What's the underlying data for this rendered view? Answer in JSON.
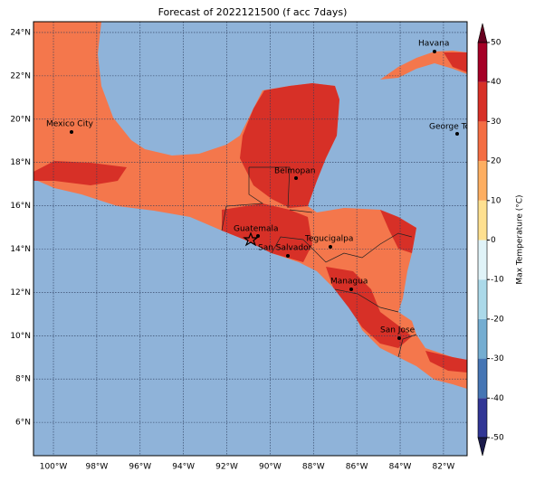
{
  "map": {
    "title": "Forecast of 2022121500 (f acc 7days)",
    "xlim": [
      -100.92,
      -80.91
    ],
    "ylim": [
      4.46,
      24.5
    ],
    "xticks": [
      {
        "value": -100,
        "label": "100°W"
      },
      {
        "value": -98,
        "label": "98°W"
      },
      {
        "value": -96,
        "label": "96°W"
      },
      {
        "value": -94,
        "label": "94°W"
      },
      {
        "value": -92,
        "label": "92°W"
      },
      {
        "value": -90,
        "label": "90°W"
      },
      {
        "value": -88,
        "label": "88°W"
      },
      {
        "value": -86,
        "label": "86°W"
      },
      {
        "value": -84,
        "label": "84°W"
      },
      {
        "value": -82,
        "label": "82°W"
      }
    ],
    "yticks": [
      {
        "value": 6,
        "label": "6°N"
      },
      {
        "value": 8,
        "label": "8°N"
      },
      {
        "value": 10,
        "label": "10°N"
      },
      {
        "value": 12,
        "label": "12°N"
      },
      {
        "value": 14,
        "label": "14°N"
      },
      {
        "value": 16,
        "label": "16°N"
      },
      {
        "value": 18,
        "label": "18°N"
      },
      {
        "value": 20,
        "label": "20°N"
      },
      {
        "value": 22,
        "label": "22°N"
      },
      {
        "value": 24,
        "label": "24°N"
      }
    ],
    "cities": [
      "Mexico City",
      "Havana",
      "George Town",
      "Belmopan",
      "Guatemala",
      "San Salvador",
      "Tegucigalpa",
      "Managua",
      "San Jose"
    ],
    "colorbar": {
      "label": "Max Temperature (°C)",
      "ticks": [
        -50,
        -40,
        -30,
        -20,
        -10,
        0,
        10,
        20,
        30,
        40,
        50
      ],
      "colors": [
        "#313695",
        "#4575b4",
        "#74add1",
        "#abd9e9",
        "#e0f3f8",
        "#fee090",
        "#fdae61",
        "#f46d43",
        "#d73027",
        "#a50026"
      ]
    }
  }
}
